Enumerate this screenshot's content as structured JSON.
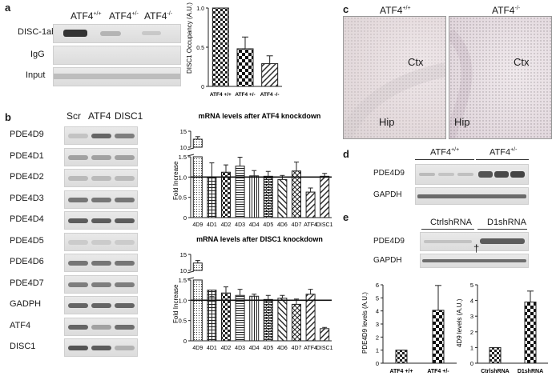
{
  "panel_a": {
    "letter": "a",
    "genotypes": [
      {
        "base": "ATF4",
        "sup": "+/+"
      },
      {
        "base": "ATF4",
        "sup": "+/-"
      },
      {
        "base": "ATF4",
        "sup": "-/-"
      }
    ],
    "rows": [
      "DISC-1ab",
      "IgG",
      "Input"
    ]
  },
  "panel_b": {
    "letter": "b",
    "lanes": [
      "Scr",
      "ATF4",
      "DISC1"
    ],
    "genes": [
      "PDE4D9",
      "PDE4D1",
      "PDE4D2",
      "PDE4D3",
      "PDE4D4",
      "PDE4D5",
      "PDE4D6",
      "PDE4D7",
      "GADPH",
      "ATF4",
      "DISC1"
    ]
  },
  "panel_c": {
    "letter": "c",
    "images": [
      {
        "base": "ATF4",
        "sup": "+/+",
        "ctx": "Ctx",
        "hip": "Hip"
      },
      {
        "base": "ATF4",
        "sup": "-/-",
        "ctx": "Ctx",
        "hip": "Hip"
      }
    ]
  },
  "panel_d": {
    "letter": "d",
    "groups": [
      {
        "base": "ATF4",
        "sup": "+/+"
      },
      {
        "base": "ATF4",
        "sup": "+/-"
      }
    ],
    "rows": [
      "PDE4D9",
      "GAPDH"
    ]
  },
  "panel_e": {
    "letter": "e",
    "groups": [
      "CtrlshRNA",
      "D1shRNA"
    ],
    "rows": [
      "PDE4D9",
      "GAPDH"
    ],
    "dagger": "†"
  },
  "chart_data": [
    {
      "id": "occupancy",
      "type": "bar",
      "ylabel": "DISC1 Occupancy (A.U.)",
      "categories": [
        "ATF4 +/+",
        "ATF4 +/-",
        "ATF4 -/-"
      ],
      "values": [
        1.0,
        0.48,
        0.29
      ],
      "errors": [
        0,
        0.15,
        0.1
      ],
      "ylim": [
        0,
        1
      ],
      "yticks": [
        "0",
        "0.5",
        "1.0"
      ]
    },
    {
      "id": "atf4_kd",
      "type": "bar",
      "title": "mRNA levels after ATF4 knockdown",
      "ylabel": "Fold Increase",
      "categories": [
        "4D9",
        "4D1",
        "4D2",
        "4D3",
        "4D4",
        "4D5",
        "4D6",
        "4D7",
        "ATF4",
        "DISC1"
      ],
      "values": [
        12.5,
        1.0,
        1.12,
        1.27,
        1.03,
        1.02,
        0.94,
        1.15,
        0.63,
        1.02
      ],
      "errors": [
        0.8,
        0.35,
        0.18,
        0.22,
        0.13,
        0.12,
        0.1,
        0.22,
        0.1,
        0.07
      ],
      "axis_break": [
        1.5,
        10
      ],
      "yticks": [
        "0",
        "0.5",
        "1.0",
        "1.5",
        "10",
        "15"
      ],
      "reference_line": 1.0
    },
    {
      "id": "disc1_kd",
      "type": "bar",
      "title": "mRNA levels after DISC1 knockdown",
      "ylabel": "Fold Increase",
      "categories": [
        "4D9",
        "4D1",
        "4D2",
        "4D3",
        "4D4",
        "4D5",
        "4D6",
        "4D7",
        "ATF4",
        "DISC1"
      ],
      "values": [
        12.3,
        1.25,
        1.18,
        1.12,
        1.1,
        1.02,
        1.05,
        0.9,
        1.15,
        0.3
      ],
      "errors": [
        0.8,
        0.58,
        0.15,
        0.15,
        0.05,
        0.1,
        0.07,
        0.13,
        0.12,
        0.03
      ],
      "axis_break": [
        1.5,
        10
      ],
      "yticks": [
        "0",
        "0.5",
        "1.0",
        "1.5",
        "10",
        "15"
      ],
      "reference_line": 1.0
    },
    {
      "id": "pde4d9_levels",
      "type": "bar",
      "ylabel": "PDE4D9 levels (A.U.)",
      "categories": [
        "ATF4 +/+",
        "ATF4 +/-"
      ],
      "values": [
        1.0,
        4.05
      ],
      "errors": [
        0,
        1.9
      ],
      "ylim": [
        0,
        6
      ],
      "yticks": [
        "0",
        "1",
        "2",
        "3",
        "4",
        "5",
        "6"
      ]
    },
    {
      "id": "4d9_levels",
      "type": "bar",
      "ylabel": "4D9 levels (A.U.)",
      "categories": [
        "CtrlshRNA",
        "D1shRNA"
      ],
      "values": [
        1.0,
        3.9
      ],
      "errors": [
        0,
        0.7
      ],
      "ylim": [
        0,
        5
      ],
      "yticks": [
        "0",
        "1",
        "2",
        "3",
        "4",
        "5"
      ]
    }
  ]
}
